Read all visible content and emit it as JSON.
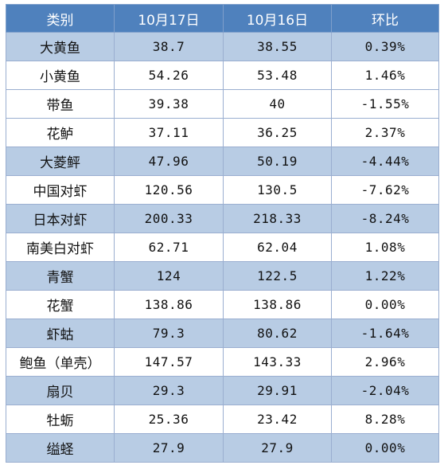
{
  "table": {
    "headers": [
      "类别",
      "10月17日",
      "10月16日",
      "环比"
    ],
    "rows": [
      {
        "category": "大黄鱼",
        "oct17": "38.7",
        "oct16": "38.55",
        "change": "0.39%"
      },
      {
        "category": "小黄鱼",
        "oct17": "54.26",
        "oct16": "53.48",
        "change": "1.46%"
      },
      {
        "category": "带鱼",
        "oct17": "39.38",
        "oct16": "40",
        "change": "-1.55%"
      },
      {
        "category": "花鲈",
        "oct17": "37.11",
        "oct16": "36.25",
        "change": "2.37%"
      },
      {
        "category": "大菱鲆",
        "oct17": "47.96",
        "oct16": "50.19",
        "change": "-4.44%"
      },
      {
        "category": "中国对虾",
        "oct17": "120.56",
        "oct16": "130.5",
        "change": "-7.62%"
      },
      {
        "category": "日本对虾",
        "oct17": "200.33",
        "oct16": "218.33",
        "change": "-8.24%"
      },
      {
        "category": "南美白对虾",
        "oct17": "62.71",
        "oct16": "62.04",
        "change": "1.08%"
      },
      {
        "category": "青蟹",
        "oct17": "124",
        "oct16": "122.5",
        "change": "1.22%"
      },
      {
        "category": "花蟹",
        "oct17": "138.86",
        "oct16": "138.86",
        "change": "0.00%"
      },
      {
        "category": "虾蛄",
        "oct17": "79.3",
        "oct16": "80.62",
        "change": "-1.64%"
      },
      {
        "category": "鲍鱼（单壳）",
        "oct17": "147.57",
        "oct16": "143.33",
        "change": "2.96%"
      },
      {
        "category": "扇贝",
        "oct17": "29.3",
        "oct16": "29.91",
        "change": "-2.04%"
      },
      {
        "category": "牡蛎",
        "oct17": "25.36",
        "oct16": "23.42",
        "change": "8.28%"
      },
      {
        "category": "缢蛏",
        "oct17": "27.9",
        "oct16": "27.9",
        "change": "0.00%"
      }
    ]
  },
  "colors": {
    "header_bg": "#4f81bd",
    "header_text": "#ffffff",
    "shade_row": "#b8cce4",
    "plain_row": "#ffffff",
    "border": "#9aaed0"
  }
}
